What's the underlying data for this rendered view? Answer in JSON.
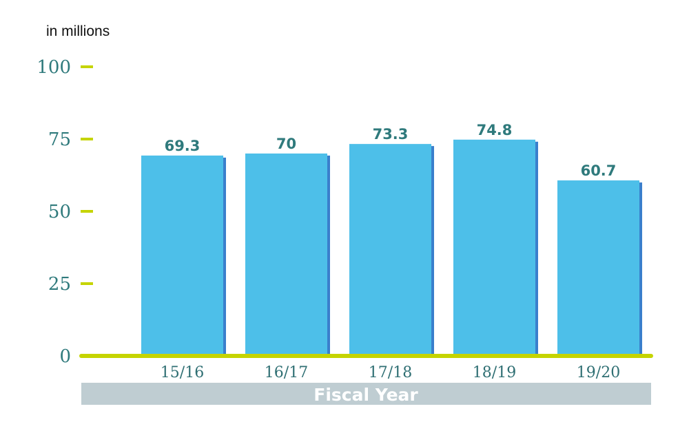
{
  "chart_data": {
    "type": "bar",
    "unit_label": "in millions",
    "categories": [
      "15/16",
      "16/17",
      "17/18",
      "18/19",
      "19/20"
    ],
    "values": [
      69.3,
      70,
      73.3,
      74.8,
      60.7
    ],
    "value_labels": [
      "69.3",
      "70",
      "73.3",
      "74.8",
      "60.7"
    ],
    "xlabel": "Fiscal Year",
    "ylabel": "",
    "title": "",
    "ylim": [
      0,
      100
    ],
    "yticks": [
      "0",
      "25",
      "50",
      "75",
      "100"
    ],
    "ytick_values": [
      0,
      25,
      50,
      75,
      100
    ],
    "grid": false,
    "legend": "none",
    "colors": {
      "bar": "#4dbfe9",
      "bar_shadow": "#3a7fcc",
      "tick_mark": "#c5d400",
      "baseline": "#c5d400",
      "axis_title_band": "#bfcdd2",
      "tick_text": "#2f7a7c",
      "data_label_text": "#2f7a7c"
    }
  }
}
